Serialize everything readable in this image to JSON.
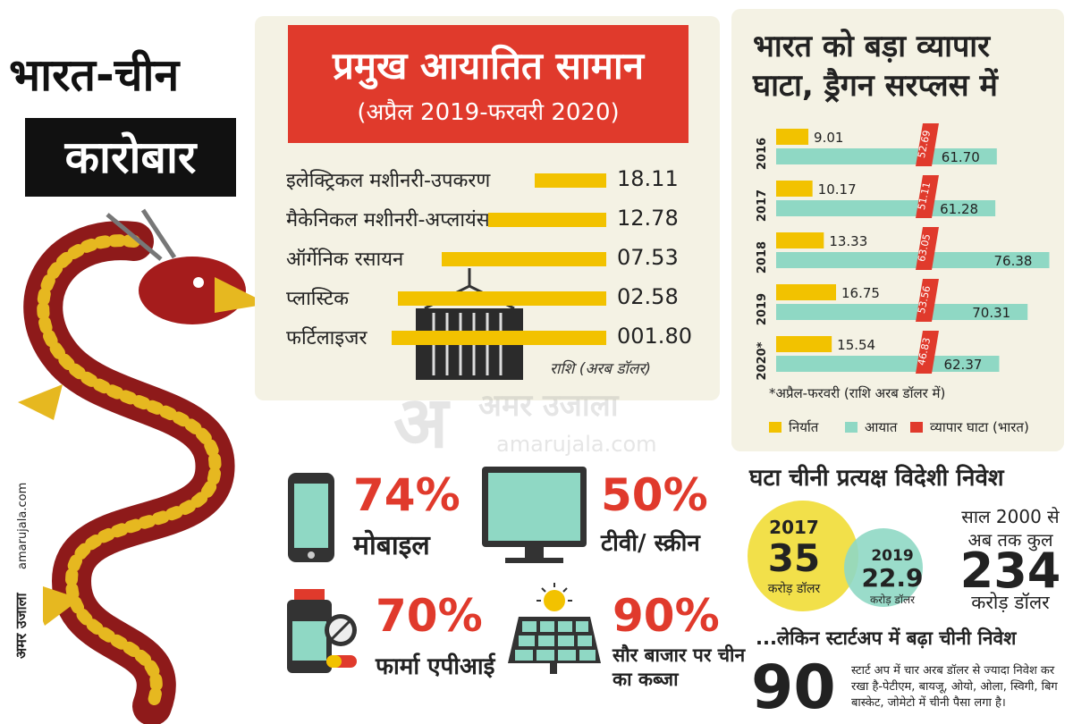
{
  "header": {
    "title_line1": "भारत-चीन",
    "title_line2": "कारोबार"
  },
  "brand": {
    "name": "अमर उजाला",
    "url": "amarujala.com"
  },
  "watermark": {
    "brand": "अमर उजाला",
    "url": "amarujala.com"
  },
  "colors": {
    "red": "#e03a2c",
    "yellow": "#f2c200",
    "teal": "#8fd8c4",
    "panel": "#f4f2e4"
  },
  "chart_data": [
    {
      "type": "bar",
      "title": "प्रमुख आयातित सामान",
      "subtitle": "(अप्रैल 2019-फरवरी 2020)",
      "unit": "राशि (अरब डॉलर)",
      "categories": [
        "इलेक्ट्रिकल मशीनरी-उपकरण",
        "मैकेनिकल मशीनरी-अप्लायंस",
        "ऑर्गेनिक रसायन",
        "प्लास्टिक",
        "फर्टिलाइजर"
      ],
      "value_labels": [
        "18.11",
        "12.78",
        "07.53",
        "02.58",
        "001.80"
      ],
      "values": [
        18.11,
        12.78,
        7.53,
        2.58,
        1.8
      ]
    },
    {
      "type": "bar",
      "title": "भारत को बड़ा व्यापार घाटा, ड्रैगन सरप्लस में",
      "categories": [
        "2016",
        "2017",
        "2018",
        "2019",
        "2020*"
      ],
      "series": [
        {
          "name": "निर्यात",
          "color": "#f2c200",
          "values": [
            9.01,
            10.17,
            13.33,
            16.75,
            15.54
          ]
        },
        {
          "name": "आयात",
          "color": "#8fd8c4",
          "values": [
            61.7,
            61.28,
            76.38,
            70.31,
            62.37
          ]
        },
        {
          "name": "व्यापार घाटा (भारत)",
          "color": "#e03a2c",
          "values": [
            52.69,
            51.11,
            63.05,
            53.56,
            46.83
          ]
        }
      ],
      "value_labels": {
        "export": [
          "9.01",
          "10.17",
          "13.33",
          "16.75",
          "15.54"
        ],
        "import": [
          "61.70",
          "61.28",
          "76.38",
          "70.31",
          "62.37"
        ],
        "deficit": [
          "52.69",
          "51.11",
          "63.05",
          "53.56",
          "46.83"
        ]
      },
      "note": "*अप्रैल-फरवरी (राशि अरब डॉलर में)",
      "legend": "bottom"
    }
  ],
  "shares": [
    {
      "icon": "mobile-icon",
      "percent": "74%",
      "label": "मोबाइल"
    },
    {
      "icon": "tv-icon",
      "percent": "50%",
      "label": "टीवी/ स्क्रीन"
    },
    {
      "icon": "medicine-icon",
      "percent": "70%",
      "label": "फार्मा एपीआई"
    },
    {
      "icon": "solar-panel-icon",
      "percent": "90%",
      "label": "सौर बाजार पर चीन का कब्जा"
    }
  ],
  "fdi": {
    "title": "घटा चीनी प्रत्यक्ष विदेशी निवेश",
    "y2017": {
      "year": "2017",
      "value": "35",
      "unit": "करोड़ डॉलर"
    },
    "y2019": {
      "year": "2019",
      "value": "22.9",
      "unit": "करोड़ डॉलर"
    },
    "total_intro": "साल 2000 से अब तक कुल",
    "total_value": "234",
    "total_unit": "करोड़ डॉलर"
  },
  "startup": {
    "title": "...लेकिन स्टार्टअप में बढ़ा चीनी निवेश",
    "number": "90",
    "text": "स्टार्ट अप में चार अरब डॉलर से ज्यादा निवेश कर रखा है-पेटीएम, बायजू, ओयो, ओला, स्विगी, बिग बास्केट, जोमेटो में चीनी पैसा लगा है।"
  }
}
